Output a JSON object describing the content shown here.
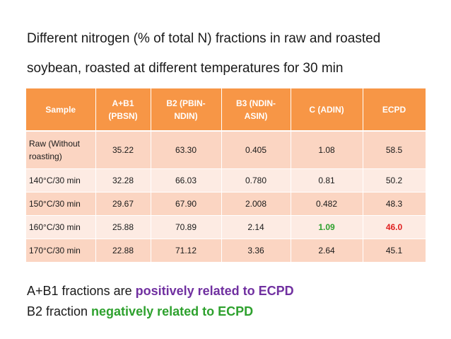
{
  "title": {
    "line1": "Different nitrogen (% of total N) fractions in raw and roasted",
    "line2": "soybean, roasted at different temperatures for 30 min"
  },
  "table": {
    "headers": [
      "Sample",
      "A+B1\n(PBSN)",
      "B2 (PBIN-\nNDIN)",
      "B3 (NDIN-\nASIN)",
      "C (ADIN)",
      "ECPD"
    ],
    "rows": [
      [
        "Raw (Without roasting)",
        "35.22",
        "63.30",
        "0.405",
        "1.08",
        "58.5"
      ],
      [
        "140°C/30 min",
        "32.28",
        "66.03",
        "0.780",
        "0.81",
        "50.2"
      ],
      [
        "150°C/30 min",
        "29.67",
        "67.90",
        "2.008",
        "0.482",
        "48.3"
      ],
      [
        "160°C/30 min",
        "25.88",
        "70.89",
        "2.14",
        "1.09",
        "46.0"
      ],
      [
        "170°C/30 min",
        "22.88",
        "71.12",
        "3.36",
        "2.64",
        "45.1"
      ]
    ]
  },
  "notes": {
    "line1_prefix": "A+B1 fractions are ",
    "line1_highlight": "positively related to ECPD",
    "line2_prefix": "B2 fraction ",
    "line2_highlight": "negatively related to ECPD"
  },
  "colors": {
    "header_bg": "#f79646",
    "row_odd": "#fbd5c2",
    "row_even": "#fdebe3",
    "highlight_green": "#2ea12e",
    "highlight_red": "#e02020",
    "highlight_purple": "#7030a0"
  }
}
